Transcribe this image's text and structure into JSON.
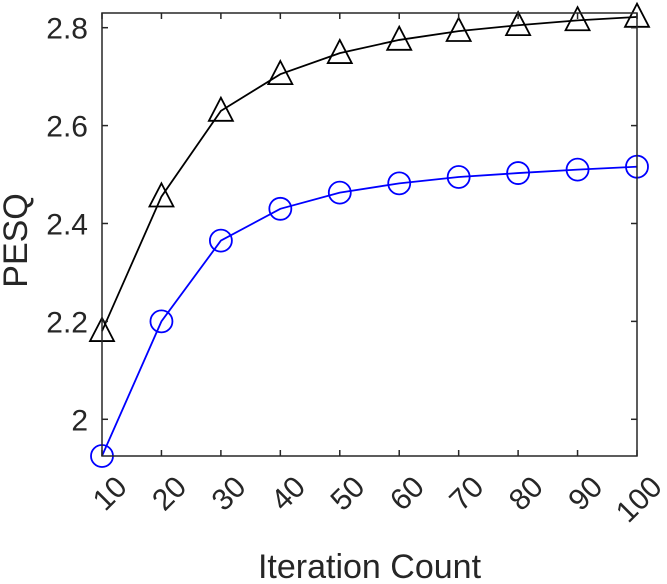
{
  "chart_data": {
    "type": "line",
    "xlabel": "Iteration Count",
    "ylabel": "PESQ",
    "xlim": [
      10,
      100
    ],
    "ylim": [
      1.925,
      2.83
    ],
    "x_ticks": [
      10,
      20,
      30,
      40,
      50,
      60,
      70,
      80,
      90,
      100
    ],
    "y_ticks": [
      2,
      2.2,
      2.4,
      2.6,
      2.8
    ],
    "y_tick_labels": [
      "2",
      "2.2",
      "2.4",
      "2.6",
      "2.8"
    ],
    "grid": false,
    "legend": "none",
    "x": [
      10,
      20,
      30,
      40,
      50,
      60,
      70,
      80,
      90,
      100
    ],
    "series": [
      {
        "color": "#000000",
        "marker": "triangle",
        "values": [
          2.18,
          2.455,
          2.63,
          2.705,
          2.748,
          2.775,
          2.793,
          2.805,
          2.815,
          2.822
        ]
      },
      {
        "color": "#0000ff",
        "marker": "circle",
        "values": [
          1.925,
          2.2,
          2.365,
          2.43,
          2.463,
          2.482,
          2.495,
          2.503,
          2.51,
          2.516
        ]
      }
    ]
  }
}
